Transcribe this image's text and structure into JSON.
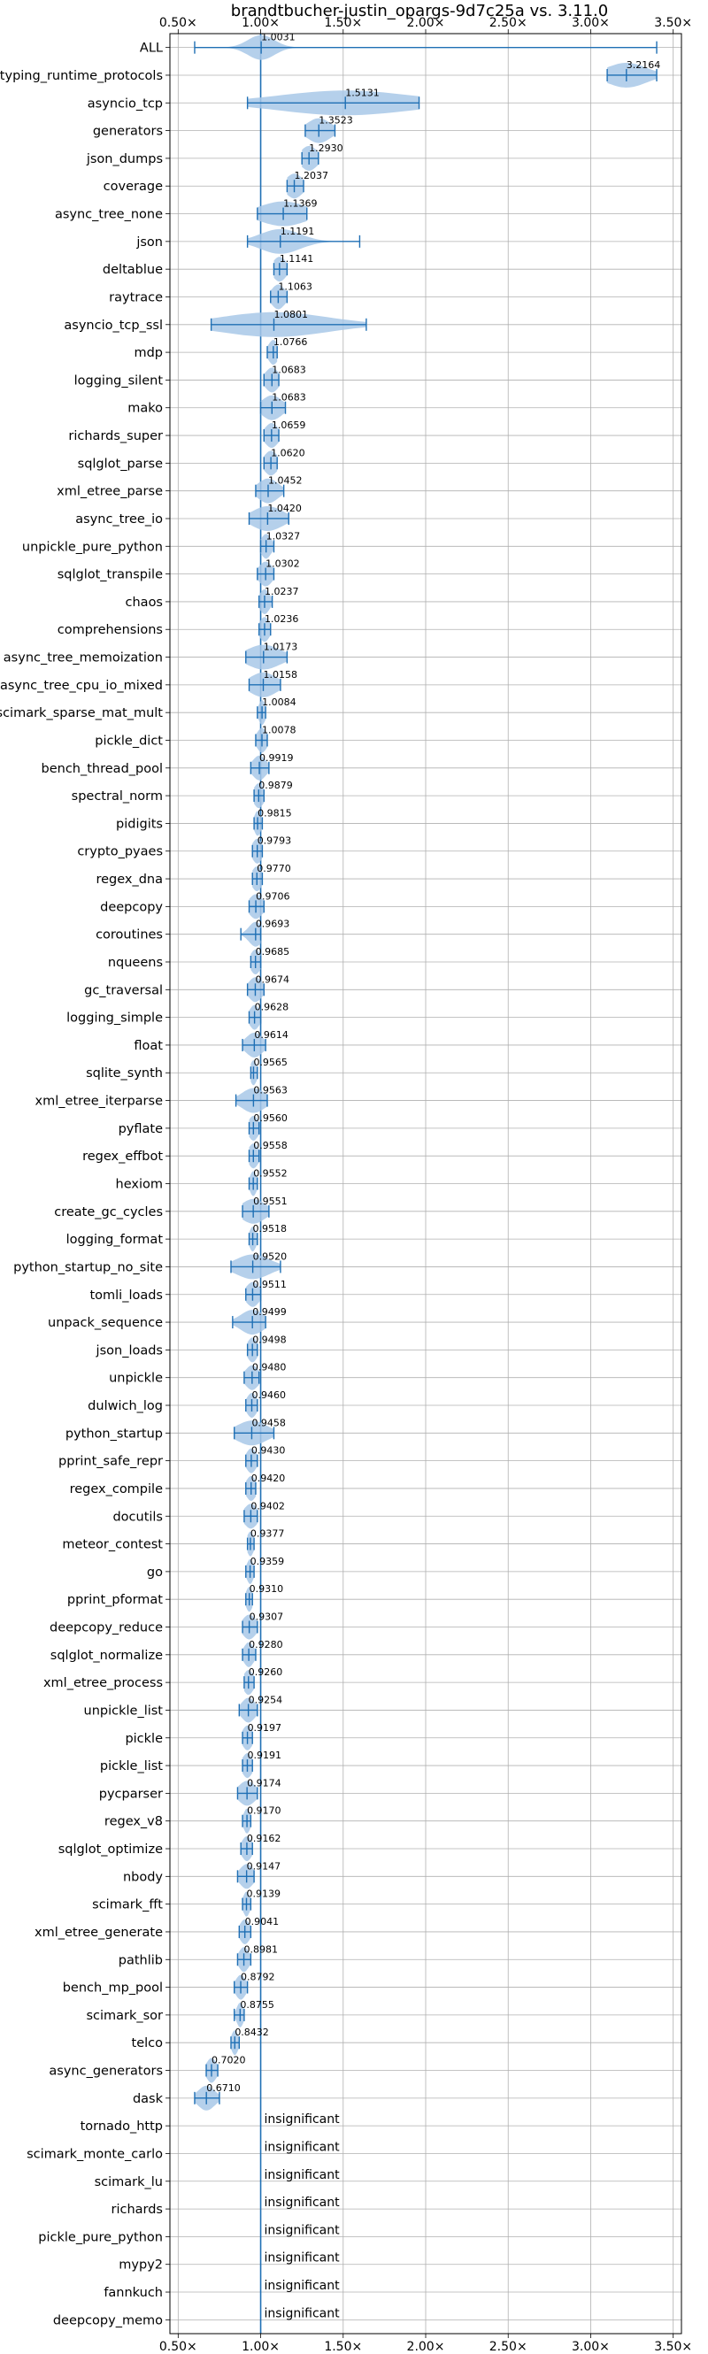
{
  "chart_data": {
    "type": "violin",
    "title": "brandtbucher-justin_opargs-9d7c25a vs. 3.11.0",
    "xlim": [
      0.45,
      3.55
    ],
    "xticks": [
      0.5,
      1.0,
      1.5,
      2.0,
      2.5,
      3.0,
      3.5
    ],
    "xtick_labels": [
      "0.50×",
      "1.00×",
      "1.50×",
      "2.00×",
      "2.50×",
      "3.00×",
      "3.50×"
    ],
    "reference_line": 1.0,
    "grid": true,
    "colors": {
      "violin": "#a8c8e8",
      "line": "#1f6fb4"
    },
    "insignificant_label": "insignificant",
    "benchmarks": [
      {
        "name": "ALL",
        "value": 1.0031,
        "label": "1.0031",
        "min": 0.6,
        "max": 3.4,
        "spread": 0.08
      },
      {
        "name": "typing_runtime_protocols",
        "value": 3.2164,
        "label": "3.2164",
        "min": 3.1,
        "max": 3.4,
        "spread": 0.12
      },
      {
        "name": "asyncio_tcp",
        "value": 1.5131,
        "label": "1.5131",
        "min": 0.92,
        "max": 1.96,
        "spread": 0.4
      },
      {
        "name": "generators",
        "value": 1.3523,
        "label": "1.3523",
        "min": 1.27,
        "max": 1.45,
        "spread": 0.07
      },
      {
        "name": "json_dumps",
        "value": 1.293,
        "label": "1.2930",
        "min": 1.25,
        "max": 1.35,
        "spread": 0.05
      },
      {
        "name": "coverage",
        "value": 1.2037,
        "label": "1.2037",
        "min": 1.16,
        "max": 1.26,
        "spread": 0.05
      },
      {
        "name": "async_tree_none",
        "value": 1.1369,
        "label": "1.1369",
        "min": 0.98,
        "max": 1.28,
        "spread": 0.14
      },
      {
        "name": "json",
        "value": 1.1191,
        "label": "1.1191",
        "min": 0.92,
        "max": 1.6,
        "spread": 0.12
      },
      {
        "name": "deltablue",
        "value": 1.1141,
        "label": "1.1141",
        "min": 1.08,
        "max": 1.16,
        "spread": 0.04
      },
      {
        "name": "raytrace",
        "value": 1.1063,
        "label": "1.1063",
        "min": 1.06,
        "max": 1.16,
        "spread": 0.04
      },
      {
        "name": "asyncio_tcp_ssl",
        "value": 1.0801,
        "label": "1.0801",
        "min": 0.7,
        "max": 1.64,
        "spread": 0.32
      },
      {
        "name": "mdp",
        "value": 1.0766,
        "label": "1.0766",
        "min": 1.04,
        "max": 1.1,
        "spread": 0.03
      },
      {
        "name": "logging_silent",
        "value": 1.0683,
        "label": "1.0683",
        "min": 1.02,
        "max": 1.11,
        "spread": 0.04
      },
      {
        "name": "mako",
        "value": 1.0683,
        "label": "1.0683",
        "min": 1.0,
        "max": 1.15,
        "spread": 0.06
      },
      {
        "name": "richards_super",
        "value": 1.0659,
        "label": "1.0659",
        "min": 1.02,
        "max": 1.11,
        "spread": 0.04
      },
      {
        "name": "sqlglot_parse",
        "value": 1.062,
        "label": "1.0620",
        "min": 1.02,
        "max": 1.1,
        "spread": 0.04
      },
      {
        "name": "xml_etree_parse",
        "value": 1.0452,
        "label": "1.0452",
        "min": 0.97,
        "max": 1.14,
        "spread": 0.06
      },
      {
        "name": "async_tree_io",
        "value": 1.042,
        "label": "1.0420",
        "min": 0.93,
        "max": 1.17,
        "spread": 0.09
      },
      {
        "name": "unpickle_pure_python",
        "value": 1.0327,
        "label": "1.0327",
        "min": 1.0,
        "max": 1.08,
        "spread": 0.03
      },
      {
        "name": "sqlglot_transpile",
        "value": 1.0302,
        "label": "1.0302",
        "min": 0.98,
        "max": 1.08,
        "spread": 0.04
      },
      {
        "name": "chaos",
        "value": 1.0237,
        "label": "1.0237",
        "min": 0.99,
        "max": 1.07,
        "spread": 0.03
      },
      {
        "name": "comprehensions",
        "value": 1.0236,
        "label": "1.0236",
        "min": 0.99,
        "max": 1.06,
        "spread": 0.03
      },
      {
        "name": "async_tree_memoization",
        "value": 1.0173,
        "label": "1.0173",
        "min": 0.91,
        "max": 1.16,
        "spread": 0.1
      },
      {
        "name": "async_tree_cpu_io_mixed",
        "value": 1.0158,
        "label": "1.0158",
        "min": 0.93,
        "max": 1.12,
        "spread": 0.08
      },
      {
        "name": "scimark_sparse_mat_mult",
        "value": 1.0084,
        "label": "1.0084",
        "min": 0.98,
        "max": 1.03,
        "spread": 0.02
      },
      {
        "name": "pickle_dict",
        "value": 1.0078,
        "label": "1.0078",
        "min": 0.97,
        "max": 1.04,
        "spread": 0.03
      },
      {
        "name": "bench_thread_pool",
        "value": 0.9919,
        "label": "0.9919",
        "min": 0.94,
        "max": 1.05,
        "spread": 0.04
      },
      {
        "name": "spectral_norm",
        "value": 0.9879,
        "label": "0.9879",
        "min": 0.96,
        "max": 1.02,
        "spread": 0.03
      },
      {
        "name": "pidigits",
        "value": 0.9815,
        "label": "0.9815",
        "min": 0.96,
        "max": 1.01,
        "spread": 0.02
      },
      {
        "name": "crypto_pyaes",
        "value": 0.9793,
        "label": "0.9793",
        "min": 0.95,
        "max": 1.01,
        "spread": 0.03
      },
      {
        "name": "regex_dna",
        "value": 0.977,
        "label": "0.9770",
        "min": 0.95,
        "max": 1.01,
        "spread": 0.03
      },
      {
        "name": "deepcopy",
        "value": 0.9706,
        "label": "0.9706",
        "min": 0.93,
        "max": 1.02,
        "spread": 0.04
      },
      {
        "name": "coroutines",
        "value": 0.9693,
        "label": "0.9693",
        "min": 0.88,
        "max": 1.0,
        "spread": 0.04
      },
      {
        "name": "nqueens",
        "value": 0.9685,
        "label": "0.9685",
        "min": 0.94,
        "max": 1.0,
        "spread": 0.03
      },
      {
        "name": "gc_traversal",
        "value": 0.9674,
        "label": "0.9674",
        "min": 0.92,
        "max": 1.02,
        "spread": 0.04
      },
      {
        "name": "logging_simple",
        "value": 0.9628,
        "label": "0.9628",
        "min": 0.93,
        "max": 1.0,
        "spread": 0.03
      },
      {
        "name": "float",
        "value": 0.9614,
        "label": "0.9614",
        "min": 0.89,
        "max": 1.03,
        "spread": 0.05
      },
      {
        "name": "sqlite_synth",
        "value": 0.9565,
        "label": "0.9565",
        "min": 0.94,
        "max": 0.98,
        "spread": 0.02
      },
      {
        "name": "xml_etree_iterparse",
        "value": 0.9563,
        "label": "0.9563",
        "min": 0.85,
        "max": 1.04,
        "spread": 0.07
      },
      {
        "name": "pyflate",
        "value": 0.956,
        "label": "0.9560",
        "min": 0.93,
        "max": 0.99,
        "spread": 0.03
      },
      {
        "name": "regex_effbot",
        "value": 0.9558,
        "label": "0.9558",
        "min": 0.93,
        "max": 0.99,
        "spread": 0.03
      },
      {
        "name": "hexiom",
        "value": 0.9552,
        "label": "0.9552",
        "min": 0.93,
        "max": 0.98,
        "spread": 0.02
      },
      {
        "name": "create_gc_cycles",
        "value": 0.9551,
        "label": "0.9551",
        "min": 0.89,
        "max": 1.05,
        "spread": 0.07
      },
      {
        "name": "logging_format",
        "value": 0.9518,
        "label": "0.9518",
        "min": 0.93,
        "max": 0.98,
        "spread": 0.02
      },
      {
        "name": "python_startup_no_site",
        "value": 0.952,
        "label": "0.9520",
        "min": 0.82,
        "max": 1.12,
        "spread": 0.1
      },
      {
        "name": "tomli_loads",
        "value": 0.9511,
        "label": "0.9511",
        "min": 0.91,
        "max": 1.0,
        "spread": 0.04
      },
      {
        "name": "unpack_sequence",
        "value": 0.9499,
        "label": "0.9499",
        "min": 0.83,
        "max": 1.03,
        "spread": 0.07
      },
      {
        "name": "json_loads",
        "value": 0.9498,
        "label": "0.9498",
        "min": 0.92,
        "max": 0.98,
        "spread": 0.03
      },
      {
        "name": "unpickle",
        "value": 0.948,
        "label": "0.9480",
        "min": 0.9,
        "max": 0.99,
        "spread": 0.04
      },
      {
        "name": "dulwich_log",
        "value": 0.946,
        "label": "0.9460",
        "min": 0.91,
        "max": 0.98,
        "spread": 0.03
      },
      {
        "name": "python_startup",
        "value": 0.9458,
        "label": "0.9458",
        "min": 0.84,
        "max": 1.08,
        "spread": 0.09
      },
      {
        "name": "pprint_safe_repr",
        "value": 0.943,
        "label": "0.9430",
        "min": 0.91,
        "max": 0.98,
        "spread": 0.03
      },
      {
        "name": "regex_compile",
        "value": 0.942,
        "label": "0.9420",
        "min": 0.91,
        "max": 0.97,
        "spread": 0.03
      },
      {
        "name": "docutils",
        "value": 0.9402,
        "label": "0.9402",
        "min": 0.9,
        "max": 0.98,
        "spread": 0.04
      },
      {
        "name": "meteor_contest",
        "value": 0.9377,
        "label": "0.9377",
        "min": 0.92,
        "max": 0.96,
        "spread": 0.02
      },
      {
        "name": "go",
        "value": 0.9359,
        "label": "0.9359",
        "min": 0.91,
        "max": 0.96,
        "spread": 0.02
      },
      {
        "name": "pprint_pformat",
        "value": 0.931,
        "label": "0.9310",
        "min": 0.91,
        "max": 0.95,
        "spread": 0.02
      },
      {
        "name": "deepcopy_reduce",
        "value": 0.9307,
        "label": "0.9307",
        "min": 0.89,
        "max": 0.98,
        "spread": 0.04
      },
      {
        "name": "sqlglot_normalize",
        "value": 0.928,
        "label": "0.9280",
        "min": 0.89,
        "max": 0.97,
        "spread": 0.03
      },
      {
        "name": "xml_etree_process",
        "value": 0.926,
        "label": "0.9260",
        "min": 0.9,
        "max": 0.96,
        "spread": 0.03
      },
      {
        "name": "unpickle_list",
        "value": 0.9254,
        "label": "0.9254",
        "min": 0.87,
        "max": 0.98,
        "spread": 0.04
      },
      {
        "name": "pickle",
        "value": 0.9197,
        "label": "0.9197",
        "min": 0.89,
        "max": 0.95,
        "spread": 0.03
      },
      {
        "name": "pickle_list",
        "value": 0.9191,
        "label": "0.9191",
        "min": 0.89,
        "max": 0.95,
        "spread": 0.03
      },
      {
        "name": "pycparser",
        "value": 0.9174,
        "label": "0.9174",
        "min": 0.86,
        "max": 0.98,
        "spread": 0.05
      },
      {
        "name": "regex_v8",
        "value": 0.917,
        "label": "0.9170",
        "min": 0.89,
        "max": 0.94,
        "spread": 0.02
      },
      {
        "name": "sqlglot_optimize",
        "value": 0.9162,
        "label": "0.9162",
        "min": 0.88,
        "max": 0.95,
        "spread": 0.03
      },
      {
        "name": "nbody",
        "value": 0.9147,
        "label": "0.9147",
        "min": 0.86,
        "max": 0.96,
        "spread": 0.04
      },
      {
        "name": "scimark_fft",
        "value": 0.9139,
        "label": "0.9139",
        "min": 0.89,
        "max": 0.94,
        "spread": 0.02
      },
      {
        "name": "xml_etree_generate",
        "value": 0.9041,
        "label": "0.9041",
        "min": 0.87,
        "max": 0.94,
        "spread": 0.03
      },
      {
        "name": "pathlib",
        "value": 0.8981,
        "label": "0.8981",
        "min": 0.86,
        "max": 0.94,
        "spread": 0.03
      },
      {
        "name": "bench_mp_pool",
        "value": 0.8792,
        "label": "0.8792",
        "min": 0.84,
        "max": 0.92,
        "spread": 0.03
      },
      {
        "name": "scimark_sor",
        "value": 0.8755,
        "label": "0.8755",
        "min": 0.84,
        "max": 0.9,
        "spread": 0.02
      },
      {
        "name": "telco",
        "value": 0.8432,
        "label": "0.8432",
        "min": 0.82,
        "max": 0.87,
        "spread": 0.02
      },
      {
        "name": "async_generators",
        "value": 0.702,
        "label": "0.7020",
        "min": 0.67,
        "max": 0.74,
        "spread": 0.03
      },
      {
        "name": "dask",
        "value": 0.671,
        "label": "0.6710",
        "min": 0.6,
        "max": 0.75,
        "spread": 0.05
      },
      {
        "name": "tornado_http",
        "insignificant": true
      },
      {
        "name": "scimark_monte_carlo",
        "insignificant": true
      },
      {
        "name": "scimark_lu",
        "insignificant": true
      },
      {
        "name": "richards",
        "insignificant": true
      },
      {
        "name": "pickle_pure_python",
        "insignificant": true
      },
      {
        "name": "mypy2",
        "insignificant": true
      },
      {
        "name": "fannkuch",
        "insignificant": true
      },
      {
        "name": "deepcopy_memo",
        "insignificant": true
      }
    ]
  }
}
